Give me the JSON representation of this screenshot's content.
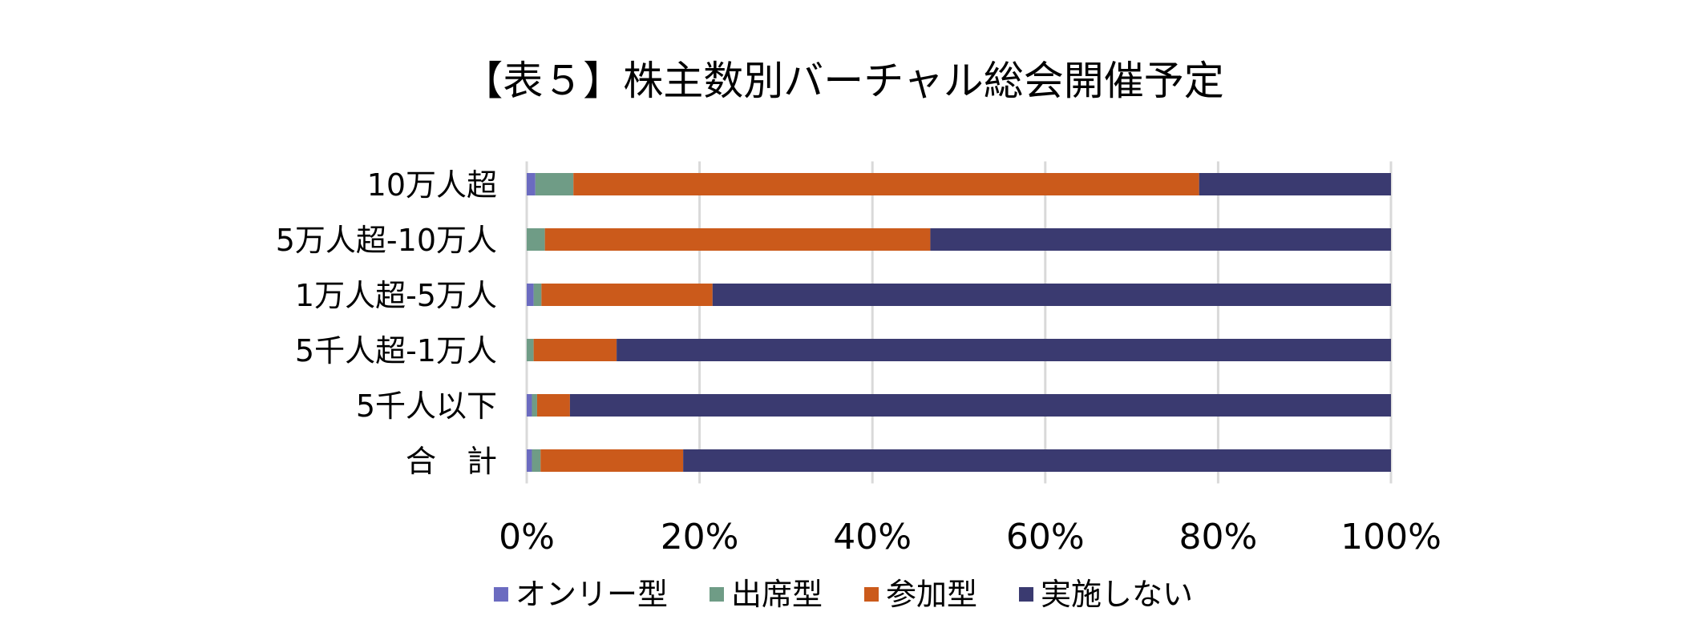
{
  "chart_data": {
    "type": "bar",
    "orientation": "horizontal",
    "stacked": "percent",
    "title": "【表５】株主数別バーチャル総会開催予定",
    "categories": [
      "10万人超",
      "5万人超-10万人",
      "1万人超-5万人",
      "5千人超-1万人",
      "5千人以下",
      "合　計"
    ],
    "series": [
      {
        "name": "オンリー型",
        "color": "#6b6bc0",
        "values": [
          1.0,
          0.0,
          0.8,
          0.0,
          0.6,
          0.6
        ]
      },
      {
        "name": "出席型",
        "color": "#6f9c86",
        "values": [
          4.4,
          2.1,
          0.9,
          0.8,
          0.6,
          1.0
        ]
      },
      {
        "name": "参加型",
        "color": "#cb5a1b",
        "values": [
          72.4,
          44.6,
          19.8,
          9.6,
          3.8,
          16.5
        ]
      },
      {
        "name": "実施しない",
        "color": "#3a3a70",
        "values": [
          22.2,
          53.3,
          78.5,
          89.6,
          95.0,
          81.9
        ]
      }
    ],
    "xlim": [
      0,
      100
    ],
    "x_ticks": [
      "0%",
      "20%",
      "40%",
      "60%",
      "80%",
      "100%"
    ],
    "grid": true,
    "legend_position": "bottom"
  }
}
